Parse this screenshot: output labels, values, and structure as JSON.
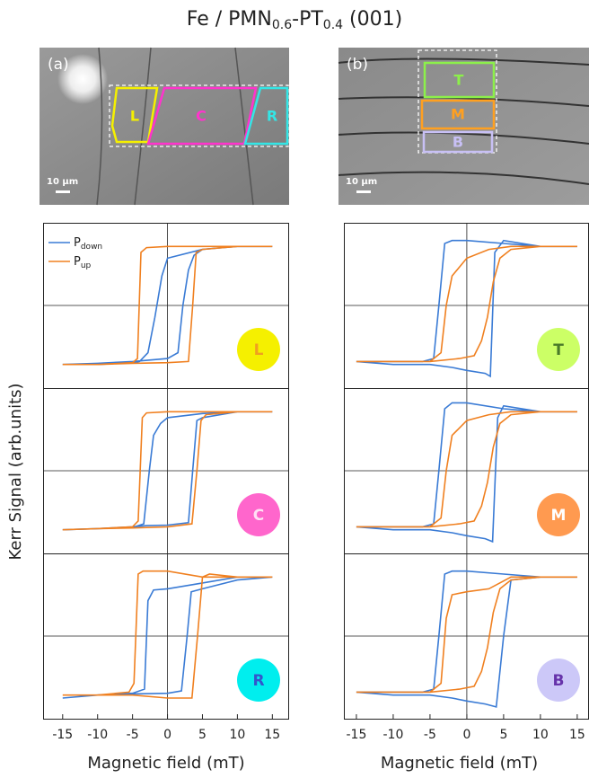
{
  "title": [
    "Fe / PMN",
    "0.6",
    "-PT",
    "0.4",
    " (001)"
  ],
  "ylabel": "Kerr Signal (arb.units)",
  "images": [
    {
      "panel": "(a)",
      "scale": "10 µm",
      "regions": [
        {
          "label": "L",
          "color": "#f5f000"
        },
        {
          "label": "C",
          "color": "#ff33cc"
        },
        {
          "label": "R",
          "color": "#33e6e6"
        }
      ]
    },
    {
      "panel": "(b)",
      "scale": "10 µm",
      "regions": [
        {
          "label": "T",
          "color": "#8cf04a"
        },
        {
          "label": "M",
          "color": "#ffa020"
        },
        {
          "label": "B",
          "color": "#c8c0f5"
        }
      ]
    }
  ],
  "chart_data": [
    {
      "type": "line",
      "xlim": [
        -17.8,
        17.4
      ],
      "ylim": [
        -1.4,
        1.4
      ],
      "legend": true,
      "badge": "L",
      "badge_color": "#f5f000",
      "badge_text_color": "#f0a020",
      "series": [
        {
          "name": [
            "P",
            "down"
          ],
          "color": "#3a7bd5",
          "x": [
            -15,
            -10,
            -5,
            0,
            1.5,
            2.2,
            3,
            3.8,
            5,
            10,
            15,
            10,
            5,
            0,
            -0.8,
            -1.8,
            -2.8,
            -4,
            -5,
            -10,
            -15
          ],
          "values": [
            -1,
            -0.98,
            -0.95,
            -0.9,
            -0.8,
            0,
            0.6,
            0.85,
            0.95,
            1,
            1,
            1,
            0.95,
            0.8,
            0.5,
            -0.2,
            -0.8,
            -0.95,
            -0.97,
            -1,
            -1
          ]
        },
        {
          "name": [
            "P",
            "up"
          ],
          "color": "#f08020",
          "x": [
            -15,
            -10,
            -5,
            0,
            3,
            3.6,
            4.1,
            5,
            10,
            15,
            10,
            5,
            0,
            -3,
            -3.8,
            -4.3,
            -5,
            -10,
            -15
          ],
          "values": [
            -1,
            -1,
            -0.98,
            -0.97,
            -0.95,
            0,
            0.9,
            0.95,
            1,
            1,
            1,
            1,
            1,
            0.98,
            0.9,
            -0.9,
            -0.97,
            -1,
            -1
          ]
        }
      ]
    },
    {
      "type": "line",
      "xlim": [
        -17.8,
        17.4
      ],
      "ylim": [
        -1.4,
        1.4
      ],
      "badge": "C",
      "badge_color": "#ff66cc",
      "badge_text_color": "#ffe0f4",
      "series": [
        {
          "color": "#3a7bd5",
          "x": [
            -15,
            -10,
            -5,
            -3,
            0,
            3,
            3.6,
            4.2,
            5,
            10,
            15,
            10,
            5,
            0,
            -1,
            -2,
            -2.6,
            -3.4,
            -5,
            -10,
            -15
          ],
          "values": [
            -1,
            -0.98,
            -0.95,
            -0.93,
            -0.92,
            -0.88,
            0,
            0.85,
            0.9,
            1,
            1,
            1,
            0.97,
            0.9,
            0.8,
            0.6,
            0,
            -0.9,
            -0.96,
            -0.98,
            -1
          ]
        },
        {
          "color": "#f08020",
          "x": [
            -15,
            -10,
            -5,
            0,
            3.5,
            4.2,
            4.8,
            5.5,
            10,
            15,
            10,
            5,
            0,
            -3,
            -3.6,
            -4.2,
            -5,
            -10,
            -15
          ],
          "values": [
            -1,
            -0.98,
            -0.97,
            -0.95,
            -0.9,
            0,
            0.85,
            0.95,
            1,
            1,
            1,
            1,
            1,
            0.98,
            0.9,
            -0.85,
            -0.95,
            -0.98,
            -1
          ]
        }
      ]
    },
    {
      "type": "line",
      "xlim": [
        -17.8,
        17.4
      ],
      "ylim": [
        -1.4,
        1.4
      ],
      "xticks": [
        -15,
        -10,
        -5,
        0,
        5,
        10,
        15
      ],
      "xlabel": "Magnetic field (mT)",
      "badge": "R",
      "badge_color": "#00eeee",
      "badge_text_color": "#3355cc",
      "series": [
        {
          "color": "#3a7bd5",
          "x": [
            -15,
            -10,
            -5,
            0,
            2,
            2.8,
            3.4,
            5,
            10,
            15,
            10,
            5,
            0,
            -2,
            -2.8,
            -3.3,
            -5,
            -10,
            -15
          ],
          "values": [
            -1.05,
            -1,
            -0.98,
            -0.97,
            -0.93,
            0,
            0.75,
            0.8,
            0.95,
            1,
            1,
            0.9,
            0.8,
            0.78,
            0.6,
            -0.9,
            -0.97,
            -1,
            -1.05
          ]
        },
        {
          "color": "#f08020",
          "x": [
            -15,
            -10,
            -5,
            0,
            3.5,
            4.3,
            5,
            6,
            10,
            15,
            10,
            5,
            0,
            -3.5,
            -4.2,
            -4.8,
            -5.5,
            -10,
            -15
          ],
          "values": [
            -1,
            -1,
            -1,
            -1.05,
            -1.05,
            0,
            1,
            1.05,
            1,
            1,
            1,
            1,
            1.1,
            1.1,
            1.05,
            -0.8,
            -0.95,
            -1,
            -1
          ]
        }
      ]
    },
    {
      "type": "line",
      "xlim": [
        -16.7,
        16.6
      ],
      "ylim": [
        -1.4,
        1.4
      ],
      "badge": "T",
      "badge_color": "#ccff66",
      "badge_text_color": "#4a7a2a",
      "series": [
        {
          "color": "#3a7bd5",
          "x": [
            -15,
            -10,
            -5,
            -2,
            0,
            2.5,
            3.2,
            3.8,
            5,
            10,
            15,
            10,
            5,
            0,
            -2,
            -3,
            -3.8,
            -4.5,
            -6,
            -10,
            -15
          ],
          "values": [
            -0.95,
            -1,
            -1,
            -1.05,
            -1.1,
            -1.15,
            -1.2,
            0.9,
            1.1,
            1,
            1,
            1,
            1.05,
            1.1,
            1.1,
            1.05,
            0,
            -0.9,
            -0.95,
            -0.95,
            -0.95
          ]
        },
        {
          "color": "#f08020",
          "x": [
            -15,
            -10,
            -5,
            -1,
            1,
            2,
            2.8,
            3.6,
            4.5,
            6,
            10,
            15,
            10,
            6,
            3,
            0,
            -2,
            -2.8,
            -3.5,
            -5,
            -10,
            -15
          ],
          "values": [
            -0.95,
            -0.95,
            -0.95,
            -0.9,
            -0.85,
            -0.6,
            -0.2,
            0.4,
            0.8,
            0.95,
            1,
            1,
            1,
            1,
            0.95,
            0.8,
            0.5,
            0,
            -0.8,
            -0.95,
            -0.95,
            -0.95
          ]
        }
      ]
    },
    {
      "type": "line",
      "xlim": [
        -16.7,
        16.6
      ],
      "ylim": [
        -1.4,
        1.4
      ],
      "badge": "M",
      "badge_color": "#ff9a50",
      "badge_text_color": "#ffffff",
      "series": [
        {
          "color": "#3a7bd5",
          "x": [
            -15,
            -10,
            -5,
            -2,
            0,
            2.5,
            3.5,
            4.2,
            5,
            10,
            15,
            10,
            5,
            0,
            -2,
            -3,
            -3.8,
            -4.5,
            -6,
            -10,
            -15
          ],
          "values": [
            -0.95,
            -1,
            -1,
            -1.05,
            -1.1,
            -1.15,
            -1.2,
            0.9,
            1.1,
            1,
            1,
            1,
            1.05,
            1.15,
            1.15,
            1.05,
            0,
            -0.9,
            -0.95,
            -0.95,
            -0.95
          ]
        },
        {
          "color": "#f08020",
          "x": [
            -15,
            -10,
            -5,
            -1,
            1,
            2,
            2.8,
            3.6,
            4.5,
            6,
            10,
            15,
            10,
            6,
            3,
            0,
            -2,
            -2.8,
            -3.5,
            -5,
            -10,
            -15
          ],
          "values": [
            -0.95,
            -0.95,
            -0.95,
            -0.9,
            -0.85,
            -0.6,
            -0.2,
            0.4,
            0.8,
            0.95,
            1,
            1,
            1,
            1,
            0.95,
            0.85,
            0.6,
            0,
            -0.8,
            -0.95,
            -0.95,
            -0.95
          ]
        }
      ]
    },
    {
      "type": "line",
      "xlim": [
        -16.7,
        16.6
      ],
      "ylim": [
        -1.4,
        1.4
      ],
      "xticks": [
        -15,
        -10,
        -5,
        0,
        5,
        10,
        15
      ],
      "xlabel": "Magnetic field (mT)",
      "badge": "B",
      "badge_color": "#ccc8f8",
      "badge_text_color": "#6633aa",
      "series": [
        {
          "color": "#3a7bd5",
          "x": [
            -15,
            -10,
            -5,
            -2,
            0,
            2.5,
            4,
            5,
            6,
            10,
            15,
            10,
            5,
            0,
            -2,
            -3,
            -3.8,
            -4.5,
            -6,
            -10,
            -15
          ],
          "values": [
            -0.95,
            -1,
            -1,
            -1.05,
            -1.1,
            -1.15,
            -1.2,
            0,
            0.95,
            1,
            1,
            1,
            1.05,
            1.1,
            1.1,
            1.05,
            0,
            -0.9,
            -0.95,
            -0.95,
            -0.95
          ]
        },
        {
          "color": "#f08020",
          "x": [
            -15,
            -10,
            -5,
            -1,
            1,
            2,
            2.8,
            3.6,
            4.5,
            6,
            10,
            15,
            10,
            6,
            3,
            0,
            -2,
            -2.8,
            -3.5,
            -5,
            -10,
            -15
          ],
          "values": [
            -0.95,
            -0.95,
            -0.95,
            -0.9,
            -0.85,
            -0.6,
            -0.2,
            0.4,
            0.8,
            0.95,
            1,
            1,
            1,
            1,
            0.8,
            0.75,
            0.7,
            0.3,
            -0.8,
            -0.95,
            -0.95,
            -0.95
          ]
        }
      ]
    }
  ]
}
